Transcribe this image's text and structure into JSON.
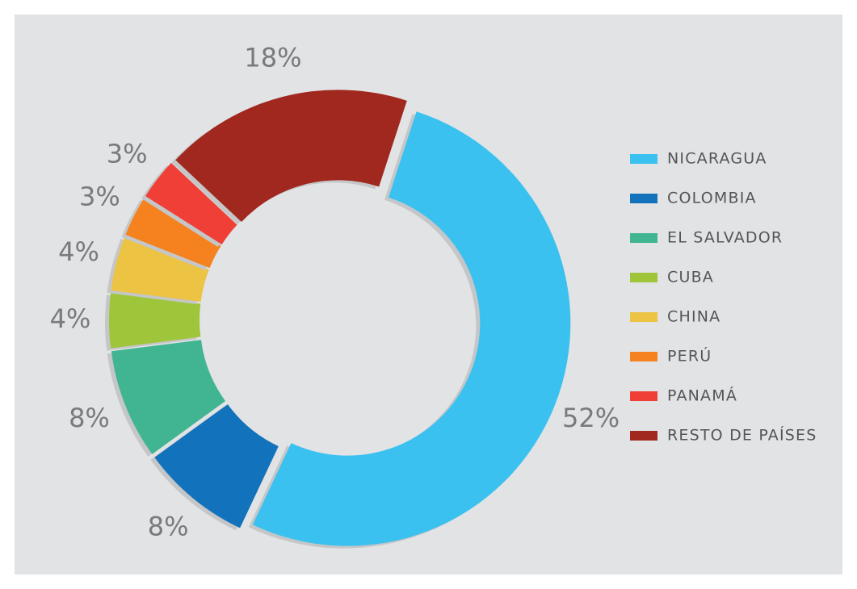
{
  "chart_data": {
    "type": "donut",
    "categories": [
      "NICARAGUA",
      "COLOMBIA",
      "EL SALVADOR",
      "CUBA",
      "CHINA",
      "PERÚ",
      "PANAMÁ",
      "RESTO DE PAÍSES"
    ],
    "values": [
      52,
      8,
      8,
      4,
      4,
      3,
      3,
      18
    ],
    "value_labels": [
      "52%",
      "8%",
      "8%",
      "4%",
      "4%",
      "3%",
      "3%",
      "18%"
    ],
    "colors": [
      "#3bc1ef",
      "#1272bb",
      "#41b592",
      "#9fc63b",
      "#ecc342",
      "#f5821f",
      "#ef3f36",
      "#a1281f"
    ],
    "legend": "right"
  }
}
